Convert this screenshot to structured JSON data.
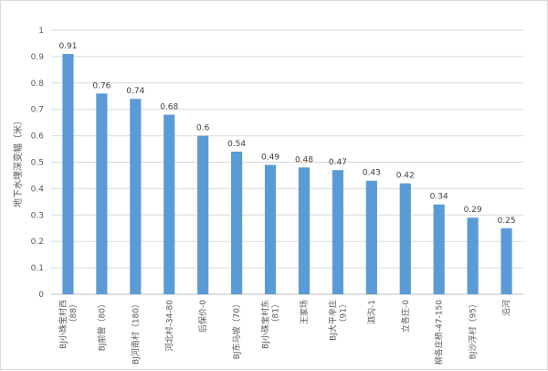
{
  "chart_data": {
    "type": "bar",
    "title": "",
    "ylabel": "地下水埋深变幅（米）",
    "xlabel": "",
    "ylim": [
      0,
      1
    ],
    "yticks": [
      0,
      0.1,
      0.2,
      0.3,
      0.4,
      0.5,
      0.6,
      0.7,
      0.8,
      0.9,
      1
    ],
    "ytick_labels": [
      "0",
      "0.1",
      "0.2",
      "0.3",
      "0.4",
      "0.5",
      "0.6",
      "0.7",
      "0.8",
      "0.9",
      "1"
    ],
    "grid": true,
    "bar_color": "#5b9bd5",
    "categories": [
      [
        "BJ小珠宝村西",
        "（88）"
      ],
      [
        "BJ前营（80）"
      ],
      [
        "BJ河南村（180）"
      ],
      [
        "河北村-34-80"
      ],
      [
        "后保价-0"
      ],
      [
        "BJ东马坡（70）"
      ],
      [
        "BJ小珠宝村东",
        "（81）"
      ],
      [
        "王家场"
      ],
      [
        "BJ大平辛庄",
        "（91）"
      ],
      [
        "泗沟-1"
      ],
      [
        "立各庄-0"
      ],
      [
        "柳各庄桥-47-150"
      ],
      [
        "BJ沙浮村（95）"
      ],
      [
        "沿河"
      ]
    ],
    "values": [
      0.91,
      0.76,
      0.74,
      0.68,
      0.6,
      0.54,
      0.49,
      0.48,
      0.47,
      0.43,
      0.42,
      0.34,
      0.29,
      0.25
    ],
    "value_labels": [
      "0.91",
      "0.76",
      "0.74",
      "0.68",
      "0.6",
      "0.54",
      "0.49",
      "0.48",
      "0.47",
      "0.43",
      "0.42",
      "0.34",
      "0.29",
      "0.25"
    ]
  }
}
